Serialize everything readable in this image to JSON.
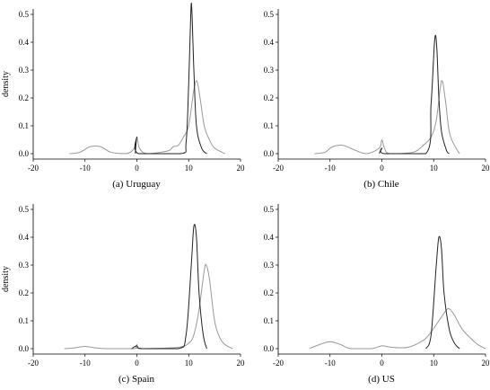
{
  "colors": {
    "dark": "#222222",
    "light": "#999999"
  },
  "chart_data": [
    {
      "type": "line",
      "caption": "(a) Uruguay",
      "ylabel": "density",
      "xlim": [
        -20,
        20
      ],
      "ylim": [
        0,
        0.5
      ],
      "xticks": [
        -20,
        -10,
        0,
        10,
        20
      ],
      "yticks": [
        0.0,
        0.1,
        0.2,
        0.3,
        0.4,
        0.5
      ],
      "series": [
        {
          "color": "dark",
          "points": [
            [
              -0.3,
              0
            ],
            [
              0,
              0.06
            ],
            [
              0.3,
              0
            ],
            [
              8.5,
              0
            ],
            [
              9.5,
              0.04
            ],
            [
              10,
              0.25
            ],
            [
              10.4,
              0.5
            ],
            [
              10.6,
              0.52
            ],
            [
              11,
              0.3
            ],
            [
              11.5,
              0.1
            ],
            [
              12.5,
              0.02
            ],
            [
              13.5,
              0
            ]
          ]
        },
        {
          "color": "light",
          "points": [
            [
              -13,
              0
            ],
            [
              -11,
              0.005
            ],
            [
              -9,
              0.025
            ],
            [
              -7,
              0.025
            ],
            [
              -5,
              0.005
            ],
            [
              -2,
              0
            ],
            [
              -0.5,
              0.02
            ],
            [
              0,
              0.06
            ],
            [
              0.5,
              0.02
            ],
            [
              2,
              0
            ],
            [
              6,
              0.01
            ],
            [
              7,
              0.025
            ],
            [
              8,
              0.03
            ],
            [
              9,
              0.06
            ],
            [
              10,
              0.1
            ],
            [
              11,
              0.23
            ],
            [
              11.6,
              0.26
            ],
            [
              12.2,
              0.2
            ],
            [
              13,
              0.1
            ],
            [
              14,
              0.05
            ],
            [
              15,
              0.02
            ],
            [
              17,
              0
            ]
          ]
        }
      ]
    },
    {
      "type": "line",
      "caption": "(b) Chile",
      "ylabel": "",
      "xlim": [
        -20,
        20
      ],
      "ylim": [
        0,
        0.5
      ],
      "xticks": [
        -20,
        -10,
        0,
        10,
        20
      ],
      "yticks": [
        0.0,
        0.1,
        0.2,
        0.3,
        0.4,
        0.5
      ],
      "series": [
        {
          "color": "dark",
          "points": [
            [
              -0.5,
              0
            ],
            [
              0,
              0.02
            ],
            [
              0.5,
              0
            ],
            [
              8.5,
              0
            ],
            [
              9.5,
              0.18
            ],
            [
              10.2,
              0.41
            ],
            [
              10.6,
              0.38
            ],
            [
              11,
              0.2
            ],
            [
              11.5,
              0.08
            ],
            [
              12.5,
              0.01
            ],
            [
              13,
              0
            ]
          ]
        },
        {
          "color": "light",
          "points": [
            [
              -13,
              0
            ],
            [
              -11,
              0.005
            ],
            [
              -9.5,
              0.025
            ],
            [
              -7.5,
              0.03
            ],
            [
              -5.5,
              0.015
            ],
            [
              -3,
              0
            ],
            [
              -0.5,
              0.02
            ],
            [
              0,
              0.05
            ],
            [
              0.5,
              0.02
            ],
            [
              1.5,
              0
            ],
            [
              6,
              0.005
            ],
            [
              8,
              0.03
            ],
            [
              9.5,
              0.06
            ],
            [
              10.5,
              0.12
            ],
            [
              11.5,
              0.26
            ],
            [
              12.2,
              0.2
            ],
            [
              13,
              0.08
            ],
            [
              14,
              0.03
            ],
            [
              15,
              0
            ]
          ]
        }
      ]
    },
    {
      "type": "line",
      "caption": "(c) Spain",
      "ylabel": "density",
      "xlim": [
        -20,
        20
      ],
      "ylim": [
        0,
        0.5
      ],
      "xticks": [
        -20,
        -10,
        0,
        10,
        20
      ],
      "yticks": [
        0.0,
        0.1,
        0.2,
        0.3,
        0.4,
        0.5
      ],
      "series": [
        {
          "color": "dark",
          "points": [
            [
              -1,
              0
            ],
            [
              0,
              0.01
            ],
            [
              1,
              0
            ],
            [
              8,
              0
            ],
            [
              9.5,
              0.05
            ],
            [
              10.5,
              0.3
            ],
            [
              11,
              0.44
            ],
            [
              11.5,
              0.4
            ],
            [
              12,
              0.2
            ],
            [
              12.8,
              0.05
            ],
            [
              13.5,
              0
            ]
          ]
        },
        {
          "color": "light",
          "points": [
            [
              -14,
              0
            ],
            [
              -12,
              0.003
            ],
            [
              -10,
              0.008
            ],
            [
              -8,
              0.003
            ],
            [
              -6,
              0
            ],
            [
              -0.5,
              0
            ],
            [
              0,
              0.015
            ],
            [
              0.5,
              0
            ],
            [
              8,
              0.005
            ],
            [
              10,
              0.02
            ],
            [
              11,
              0.05
            ],
            [
              12,
              0.14
            ],
            [
              13,
              0.28
            ],
            [
              13.4,
              0.3
            ],
            [
              14,
              0.25
            ],
            [
              15,
              0.1
            ],
            [
              16,
              0.04
            ],
            [
              17,
              0.015
            ],
            [
              18.5,
              0
            ]
          ]
        }
      ]
    },
    {
      "type": "line",
      "caption": "(d) US",
      "ylabel": "",
      "xlim": [
        -20,
        20
      ],
      "ylim": [
        0,
        0.5
      ],
      "xticks": [
        -20,
        -10,
        0,
        10,
        20
      ],
      "yticks": [
        0.0,
        0.1,
        0.2,
        0.3,
        0.4,
        0.5
      ],
      "series": [
        {
          "color": "dark",
          "points": [
            [
              8.5,
              0
            ],
            [
              9.5,
              0.05
            ],
            [
              10.5,
              0.3
            ],
            [
              11,
              0.4
            ],
            [
              11.5,
              0.36
            ],
            [
              12,
              0.2
            ],
            [
              13,
              0.07
            ],
            [
              14,
              0.02
            ],
            [
              15,
              0
            ]
          ]
        },
        {
          "color": "light",
          "points": [
            [
              -14,
              0
            ],
            [
              -12,
              0.015
            ],
            [
              -10,
              0.025
            ],
            [
              -8,
              0.015
            ],
            [
              -6,
              0
            ],
            [
              -2,
              0
            ],
            [
              0,
              0.01
            ],
            [
              2,
              0.005
            ],
            [
              5,
              0.005
            ],
            [
              8,
              0.03
            ],
            [
              9.5,
              0.06
            ],
            [
              11,
              0.1
            ],
            [
              12.5,
              0.14
            ],
            [
              13.2,
              0.14
            ],
            [
              14,
              0.12
            ],
            [
              15.5,
              0.07
            ],
            [
              17,
              0.04
            ],
            [
              18.5,
              0.015
            ],
            [
              20,
              0
            ]
          ]
        }
      ]
    }
  ]
}
